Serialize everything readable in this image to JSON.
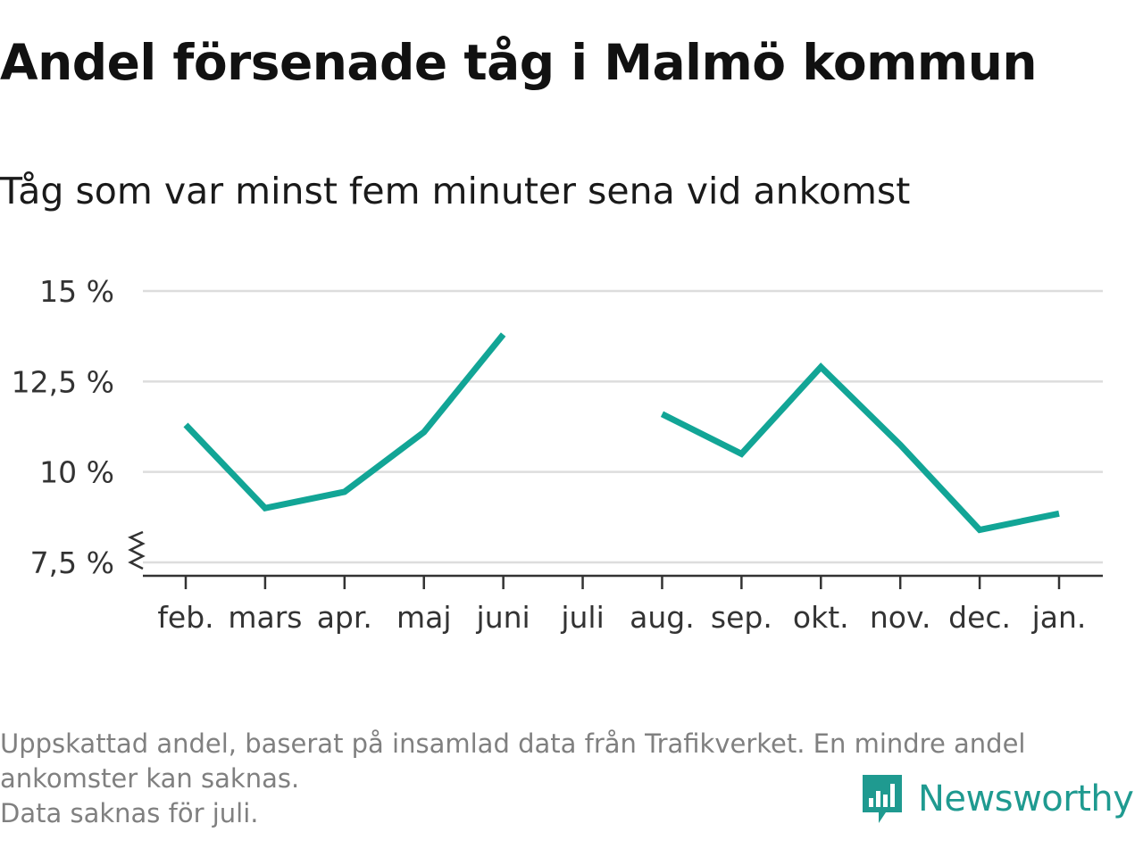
{
  "header": {
    "title": "Andel försenade tåg i Malmö kommun",
    "subtitle": "Tåg som var minst fem minuter sena vid ankomst"
  },
  "chart_data": {
    "type": "line",
    "title": "Andel försenade tåg i Malmö kommun",
    "subtitle": "Tåg som var minst fem minuter sena vid ankomst",
    "categories": [
      "feb.",
      "mars",
      "apr.",
      "maj",
      "juni",
      "juli",
      "aug.",
      "sep.",
      "okt.",
      "nov.",
      "dec.",
      "jan."
    ],
    "series": [
      {
        "values": [
          11.3,
          9.0,
          9.45,
          11.1,
          13.8,
          null,
          11.6,
          10.5,
          12.9,
          10.75,
          8.4,
          8.85
        ]
      }
    ],
    "y_ticks": [
      7.5,
      10,
      12.5,
      15
    ],
    "y_tick_labels": [
      "7,5 %",
      "10 %",
      "12,5 %",
      "15 %"
    ],
    "ylim": [
      7.5,
      15
    ],
    "y_axis_break": true,
    "grid": true,
    "color": "#12a596"
  },
  "footer": {
    "note_lines": [
      "Uppskattad andel, baserat på insamlad data från Trafikverket. En mindre andel",
      "ankomster kan saknas.",
      "Data saknas för juli."
    ],
    "brand": "Newsworthy",
    "brand_color": "#1f9a90"
  }
}
